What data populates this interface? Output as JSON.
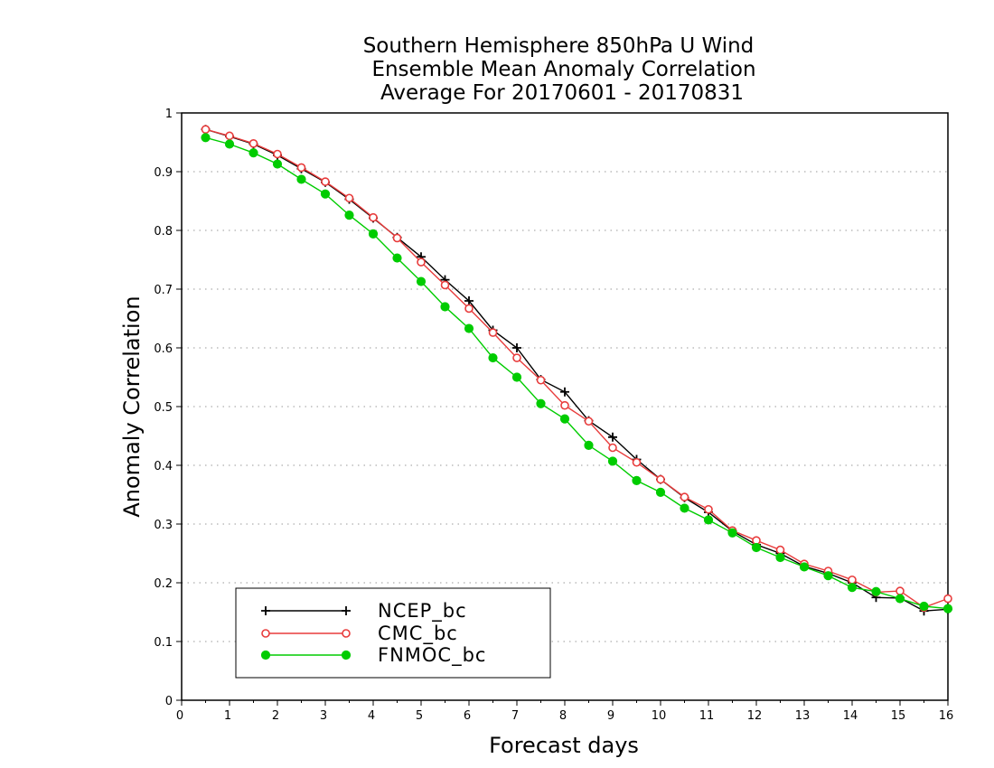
{
  "chart_data": {
    "type": "line",
    "title": [
      "Southern Hemisphere 850hPa U Wind",
      "Ensemble Mean Anomaly Correlation",
      "Average For 20170601 - 20170831"
    ],
    "xlabel": "Forecast days",
    "ylabel": "Anomaly Correlation",
    "xlim": [
      0,
      16
    ],
    "ylim": [
      0,
      1
    ],
    "x_ticks": [
      "0",
      "1",
      "2",
      "3",
      "4",
      "5",
      "6",
      "7",
      "8",
      "9",
      "10",
      "11",
      "12",
      "13",
      "14",
      "15",
      "16"
    ],
    "y_ticks": [
      "0",
      "0.1",
      "0.2",
      "0.3",
      "0.4",
      "0.5",
      "0.6",
      "0.7",
      "0.8",
      "0.9",
      "1"
    ],
    "grid": "horizontal dotted",
    "legend_position": "bottom-left",
    "x": [
      0.5,
      1,
      1.5,
      2,
      2.5,
      3,
      3.5,
      4,
      4.5,
      5,
      5.5,
      6,
      6.5,
      7,
      7.5,
      8,
      8.5,
      9,
      9.5,
      10,
      10.5,
      11,
      11.5,
      12,
      12.5,
      13,
      13.5,
      14,
      14.5,
      15,
      15.5,
      16
    ],
    "series": [
      {
        "name": "NCEP_bc",
        "color": "#000000",
        "marker": "plus",
        "values": [
          0.972,
          0.96,
          0.947,
          0.928,
          0.905,
          0.882,
          0.853,
          0.821,
          0.788,
          0.755,
          0.716,
          0.68,
          0.63,
          0.6,
          0.546,
          0.525,
          0.476,
          0.448,
          0.41,
          0.376,
          0.345,
          0.32,
          0.288,
          0.265,
          0.25,
          0.228,
          0.216,
          0.2,
          0.175,
          0.174,
          0.152,
          0.155
        ]
      },
      {
        "name": "CMC_bc",
        "color": "#e83c3c",
        "marker": "open-circle",
        "values": [
          0.972,
          0.961,
          0.948,
          0.93,
          0.907,
          0.883,
          0.855,
          0.822,
          0.787,
          0.746,
          0.707,
          0.667,
          0.626,
          0.583,
          0.545,
          0.502,
          0.475,
          0.43,
          0.405,
          0.376,
          0.346,
          0.325,
          0.289,
          0.272,
          0.256,
          0.232,
          0.22,
          0.205,
          0.184,
          0.186,
          0.158,
          0.173
        ]
      },
      {
        "name": "FNMOC_bc",
        "color": "#00cc00",
        "marker": "filled-circle",
        "values": [
          0.958,
          0.947,
          0.932,
          0.913,
          0.887,
          0.862,
          0.826,
          0.794,
          0.753,
          0.713,
          0.67,
          0.633,
          0.583,
          0.55,
          0.505,
          0.479,
          0.434,
          0.407,
          0.374,
          0.354,
          0.327,
          0.307,
          0.285,
          0.26,
          0.243,
          0.227,
          0.212,
          0.192,
          0.185,
          0.173,
          0.16,
          0.156
        ]
      }
    ]
  }
}
